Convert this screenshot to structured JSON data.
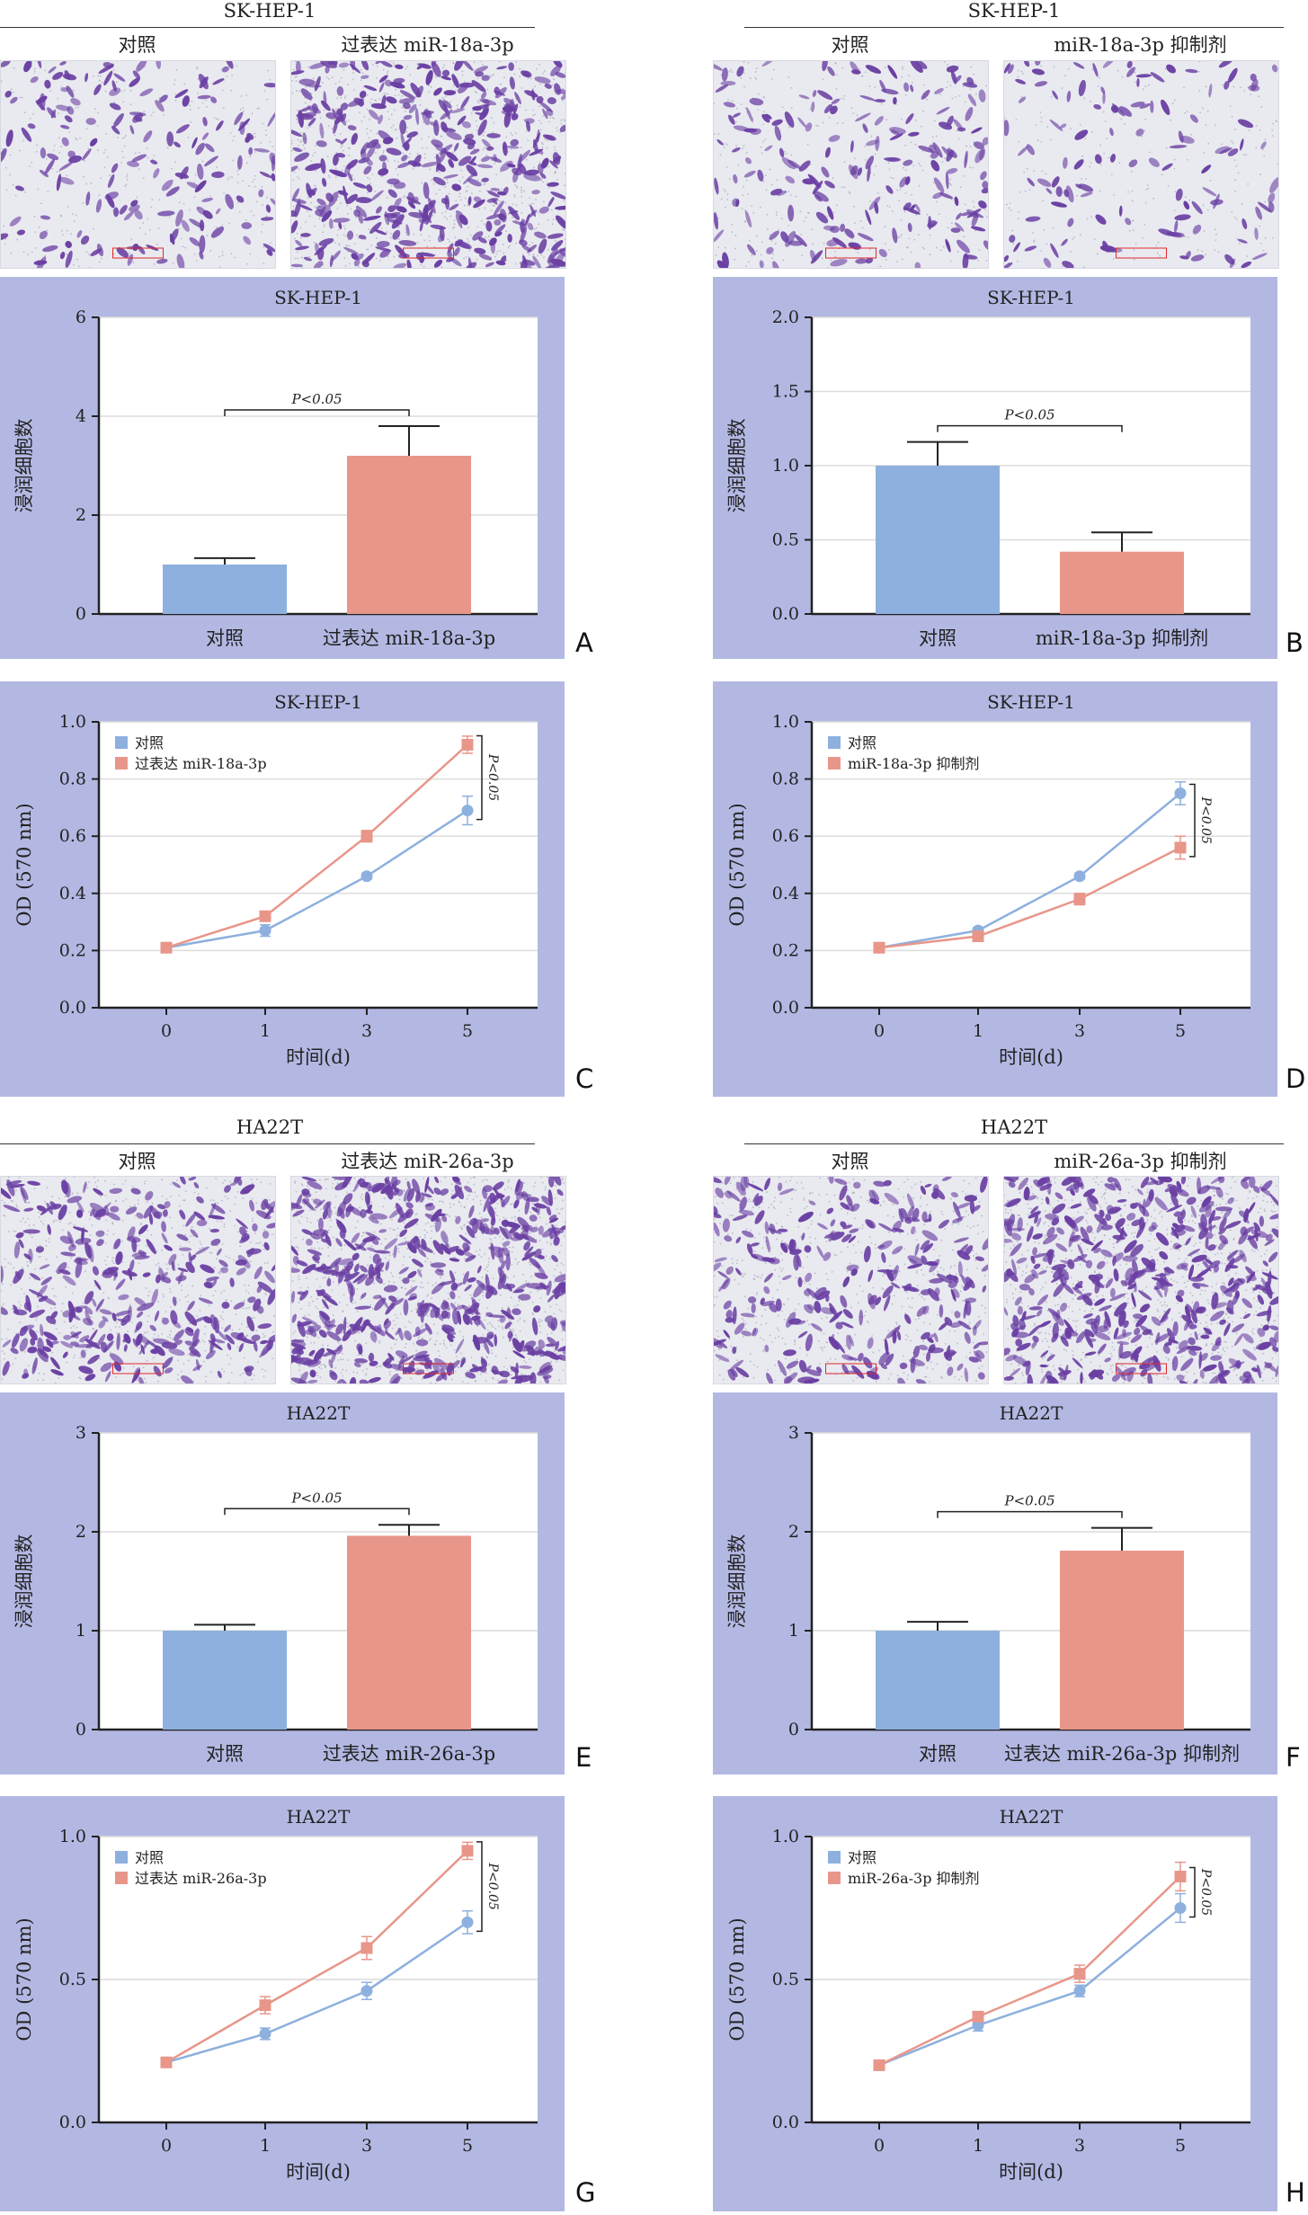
{
  "colors": {
    "control": "#8db0de",
    "treatment": "#e8968a",
    "panel_bg": "#b3b8e3",
    "stain": "#6a3fa3",
    "scale_red": "#e0282a"
  },
  "sections": [
    {
      "title": "SK-HEP-1",
      "micro_labels": [
        "对照",
        "过表达 miR-18a-3p"
      ],
      "bar": {
        "letter": "A",
        "chart_data": {
          "type": "bar",
          "title": "SK-HEP-1",
          "ylabel": "浸润细胞数",
          "categories": [
            "对照",
            "过表达 miR-18a-3p"
          ],
          "values": [
            1.0,
            3.2
          ],
          "errors": [
            0.13,
            0.6
          ],
          "ylim": [
            0,
            6
          ],
          "yticks": [
            "0",
            "2",
            "4",
            "6"
          ],
          "grid": true,
          "annotation": "P<0.05"
        }
      },
      "line": {
        "letter": "C",
        "chart_data": {
          "type": "line",
          "title": "SK-HEP-1",
          "xlabel": "时间(d)",
          "ylabel": "OD (570 nm)",
          "categories": [
            "0",
            "1",
            "3",
            "5"
          ],
          "series": [
            {
              "name": "对照",
              "values": [
                0.21,
                0.27,
                0.46,
                0.69
              ],
              "errors": [
                0.01,
                0.02,
                0.01,
                0.05
              ]
            },
            {
              "name": "过表达 miR-18a-3p",
              "values": [
                0.21,
                0.32,
                0.6,
                0.92
              ],
              "errors": [
                0.01,
                0.01,
                0.02,
                0.03
              ]
            }
          ],
          "ylim": [
            0,
            1.0
          ],
          "yticks": [
            "0.0",
            "0.2",
            "0.4",
            "0.6",
            "0.8",
            "1.0"
          ],
          "grid": true,
          "legend": "top-left",
          "annotation": "P<0.05"
        }
      }
    },
    {
      "title": "SK-HEP-1",
      "micro_labels": [
        "对照",
        "miR-18a-3p 抑制剂"
      ],
      "bar": {
        "letter": "B",
        "chart_data": {
          "type": "bar",
          "title": "SK-HEP-1",
          "ylabel": "浸润细胞数",
          "categories": [
            "对照",
            "miR-18a-3p 抑制剂"
          ],
          "values": [
            1.0,
            0.42
          ],
          "errors": [
            0.16,
            0.13
          ],
          "ylim": [
            0,
            2.0
          ],
          "yticks": [
            "0.0",
            "0.5",
            "1.0",
            "1.5",
            "2.0"
          ],
          "grid": true,
          "annotation": "P<0.05"
        }
      },
      "line": {
        "letter": "D",
        "chart_data": {
          "type": "line",
          "title": "SK-HEP-1",
          "xlabel": "时间(d)",
          "ylabel": "OD (570 nm)",
          "categories": [
            "0",
            "1",
            "3",
            "5"
          ],
          "series": [
            {
              "name": "对照",
              "values": [
                0.21,
                0.27,
                0.46,
                0.75
              ],
              "errors": [
                0.01,
                0.01,
                0.01,
                0.04
              ]
            },
            {
              "name": "miR-18a-3p 抑制剂",
              "values": [
                0.21,
                0.25,
                0.38,
                0.56
              ],
              "errors": [
                0.01,
                0.01,
                0.02,
                0.04
              ]
            }
          ],
          "ylim": [
            0,
            1.0
          ],
          "yticks": [
            "0.0",
            "0.2",
            "0.4",
            "0.6",
            "0.8",
            "1.0"
          ],
          "grid": true,
          "legend": "top-left",
          "annotation": "P<0.05"
        }
      }
    },
    {
      "title": "HA22T",
      "micro_labels": [
        "对照",
        "过表达 miR-26a-3p"
      ],
      "bar": {
        "letter": "E",
        "chart_data": {
          "type": "bar",
          "title": "HA22T",
          "ylabel": "浸润细胞数",
          "categories": [
            "对照",
            "过表达 miR-26a-3p"
          ],
          "values": [
            1.0,
            1.96
          ],
          "errors": [
            0.06,
            0.11
          ],
          "ylim": [
            0,
            3
          ],
          "yticks": [
            "0",
            "1",
            "2",
            "3"
          ],
          "grid": true,
          "annotation": "P<0.05"
        }
      },
      "line": {
        "letter": "G",
        "chart_data": {
          "type": "line",
          "title": "HA22T",
          "xlabel": "时间(d)",
          "ylabel": "OD (570 nm)",
          "categories": [
            "0",
            "1",
            "3",
            "5"
          ],
          "series": [
            {
              "name": "对照",
              "values": [
                0.21,
                0.31,
                0.46,
                0.7
              ],
              "errors": [
                0.01,
                0.02,
                0.03,
                0.04
              ]
            },
            {
              "name": "过表达 miR-26a-3p",
              "values": [
                0.21,
                0.41,
                0.61,
                0.95
              ],
              "errors": [
                0.01,
                0.03,
                0.04,
                0.03
              ]
            }
          ],
          "ylim": [
            0,
            1.0
          ],
          "yticks": [
            "0.0",
            "0.5",
            "1.0"
          ],
          "grid": true,
          "legend": "top-left",
          "annotation": "P<0.05"
        }
      }
    },
    {
      "title": "HA22T",
      "micro_labels": [
        "对照",
        "miR-26a-3p 抑制剂"
      ],
      "bar": {
        "letter": "F",
        "chart_data": {
          "type": "bar",
          "title": "HA22T",
          "ylabel": "浸润细胞数",
          "categories": [
            "对照",
            "过表达 miR-26a-3p 抑制剂"
          ],
          "values": [
            1.0,
            1.81
          ],
          "errors": [
            0.09,
            0.23
          ],
          "ylim": [
            0,
            3
          ],
          "yticks": [
            "0",
            "1",
            "2",
            "3"
          ],
          "grid": true,
          "annotation": "P<0.05"
        }
      },
      "line": {
        "letter": "H",
        "chart_data": {
          "type": "line",
          "title": "HA22T",
          "xlabel": "时间(d)",
          "ylabel": "OD (570 nm)",
          "categories": [
            "0",
            "1",
            "3",
            "5"
          ],
          "series": [
            {
              "name": "对照",
              "values": [
                0.2,
                0.34,
                0.46,
                0.75
              ],
              "errors": [
                0.01,
                0.02,
                0.02,
                0.05
              ]
            },
            {
              "name": "miR-26a-3p 抑制剂",
              "values": [
                0.2,
                0.37,
                0.52,
                0.86
              ],
              "errors": [
                0.01,
                0.01,
                0.03,
                0.05
              ]
            }
          ],
          "ylim": [
            0,
            1.0
          ],
          "yticks": [
            "0.0",
            "0.5",
            "1.0"
          ],
          "grid": true,
          "legend": "top-left",
          "annotation": "P<0.05"
        }
      }
    }
  ]
}
